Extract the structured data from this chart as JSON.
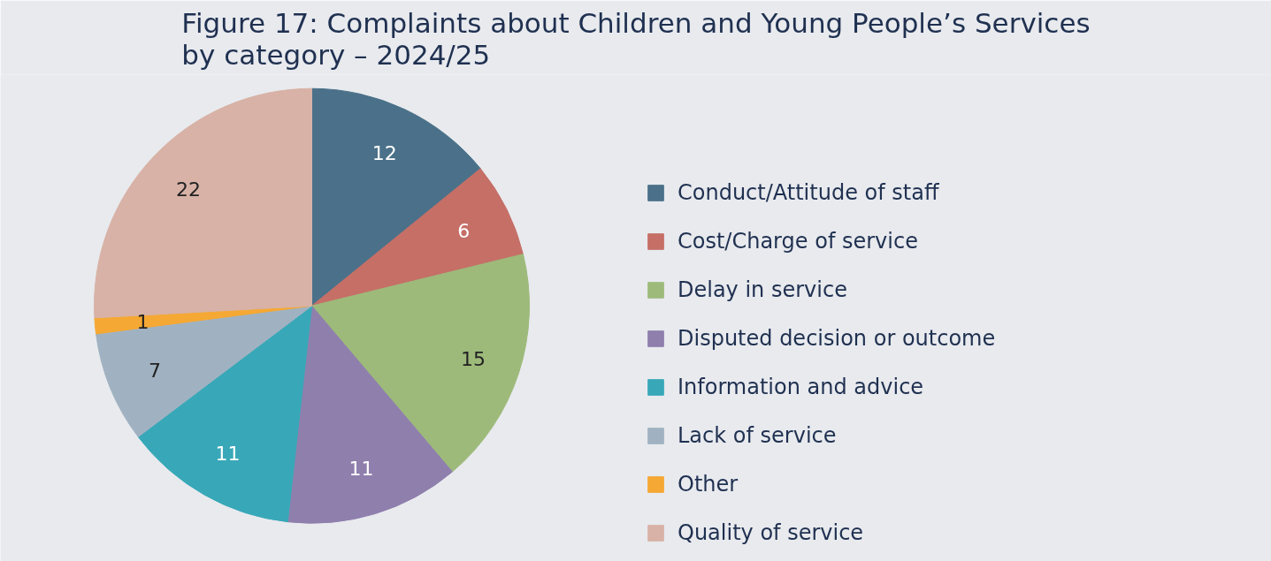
{
  "chart_data": {
    "type": "pie",
    "title": "Figure 17: Complaints about Children and Young People’s Services\nby category – 2024/25",
    "categories": [
      "Conduct/Attitude of staff",
      "Cost/Charge of service",
      "Delay in service",
      "Disputed decision or outcome",
      "Information and advice",
      "Lack of service",
      "Other",
      "Quality of service"
    ],
    "values": [
      12,
      6,
      15,
      11,
      11,
      7,
      1,
      22
    ],
    "colors": [
      "#4a7189",
      "#c56f67",
      "#9dba7a",
      "#8f7fad",
      "#38a8b8",
      "#a0b2c2",
      "#f5a833",
      "#d8b2a6"
    ],
    "data_labels": true,
    "legend": "right"
  }
}
